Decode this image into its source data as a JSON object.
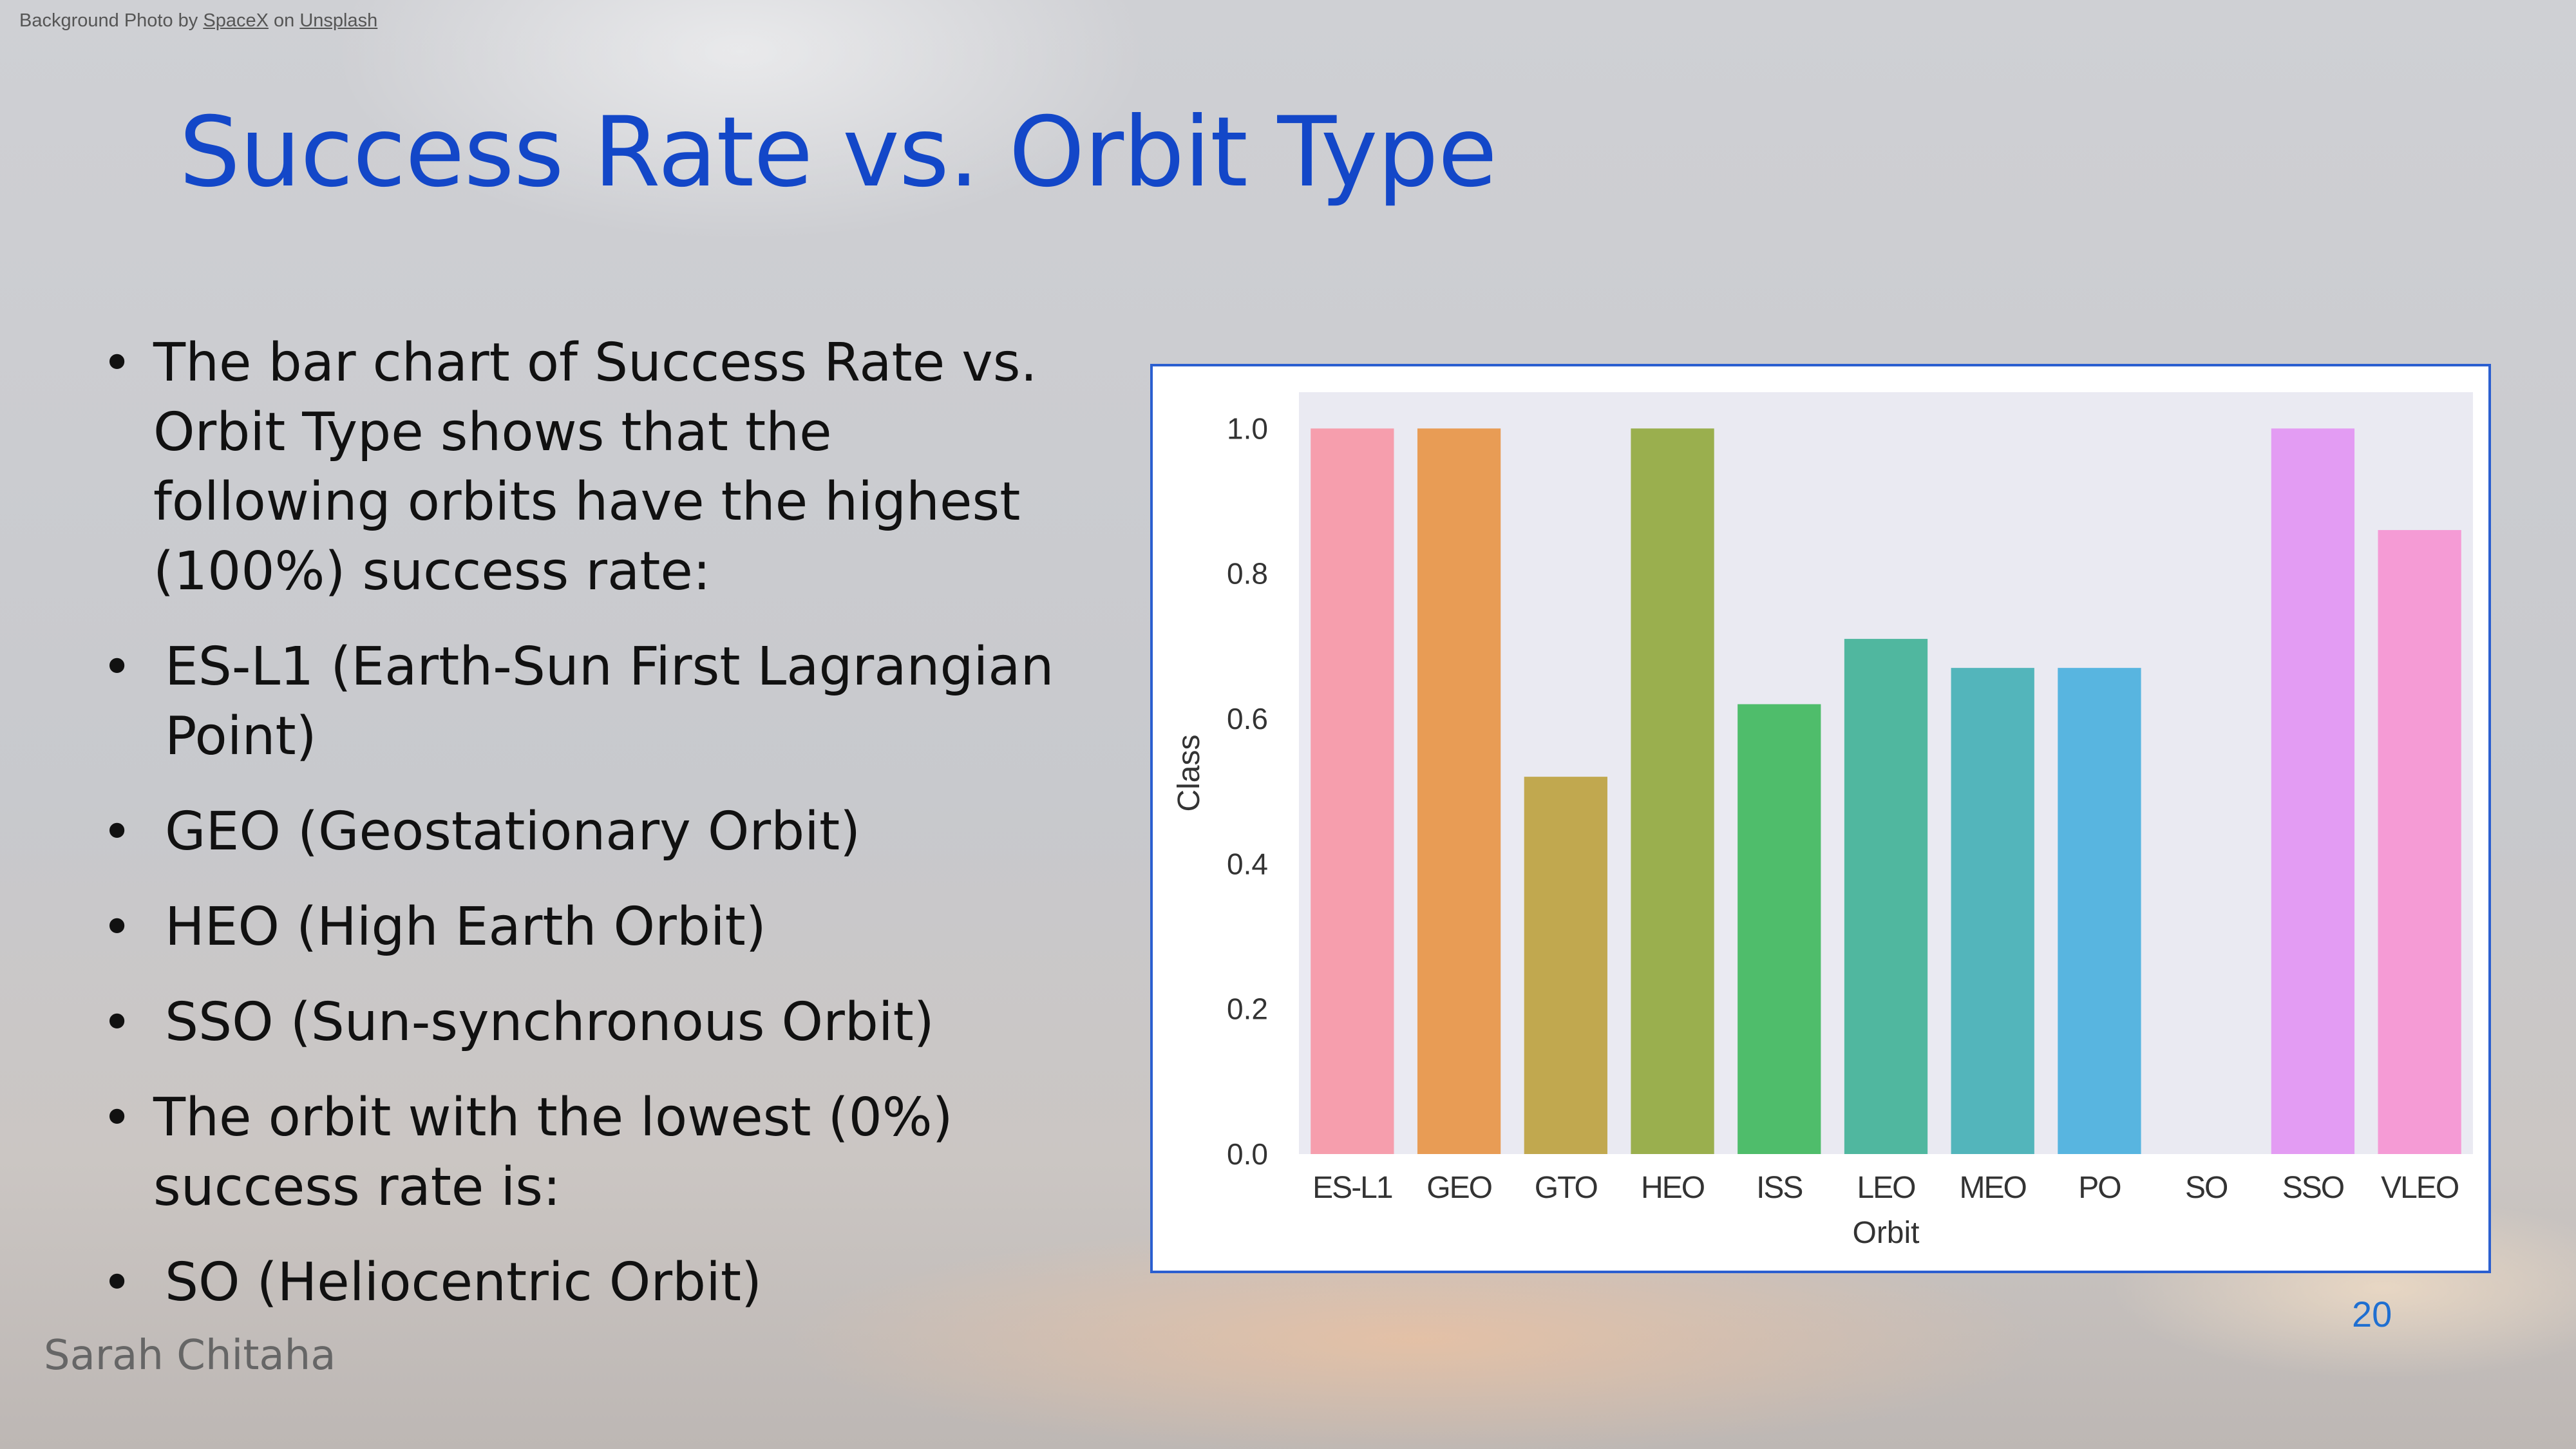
{
  "credit": {
    "prefix": "Background Photo by",
    "author": "SpaceX",
    "on": "on",
    "site": "Unsplash"
  },
  "title": "Success Rate vs. Orbit Type",
  "bullets": [
    {
      "text": "The bar chart of Success Rate vs. Orbit Type shows that the following orbits have the highest (100%) success rate:",
      "sub": false
    },
    {
      "text": "ES-L1 (Earth-Sun First Lagrangian Point)",
      "sub": true
    },
    {
      "text": "GEO (Geostationary Orbit)",
      "sub": true
    },
    {
      "text": "HEO (High Earth Orbit)",
      "sub": true
    },
    {
      "text": "SSO (Sun-synchronous Orbit)",
      "sub": true
    },
    {
      "text": "The orbit with the lowest (0%) success rate is:",
      "sub": false
    },
    {
      "text": "SO (Heliocentric Orbit)",
      "sub": true
    }
  ],
  "footer": {
    "author": "Sarah Chitaha",
    "page": "20"
  },
  "chart_data": {
    "type": "bar",
    "categories": [
      "ES-L1",
      "GEO",
      "GTO",
      "HEO",
      "ISS",
      "LEO",
      "MEO",
      "PO",
      "SO",
      "SSO",
      "VLEO"
    ],
    "values": [
      1.0,
      1.0,
      0.52,
      1.0,
      0.62,
      0.71,
      0.67,
      0.67,
      0.0,
      1.0,
      0.86
    ],
    "colors": [
      "#f69ead",
      "#e89c55",
      "#c1a84f",
      "#9aaf4e",
      "#4fbd6b",
      "#50b79f",
      "#53b5bb",
      "#58b5e0",
      "#a9b4f2",
      "#e39cf3",
      "#f59bd5"
    ],
    "xlabel": "Orbit",
    "ylabel": "Class",
    "ylim": [
      0,
      1.05
    ],
    "yticks": [
      "0.0",
      "0.2",
      "0.4",
      "0.6",
      "0.8",
      "1.0"
    ],
    "grid": false,
    "plot_background": "#eaeaf2"
  }
}
